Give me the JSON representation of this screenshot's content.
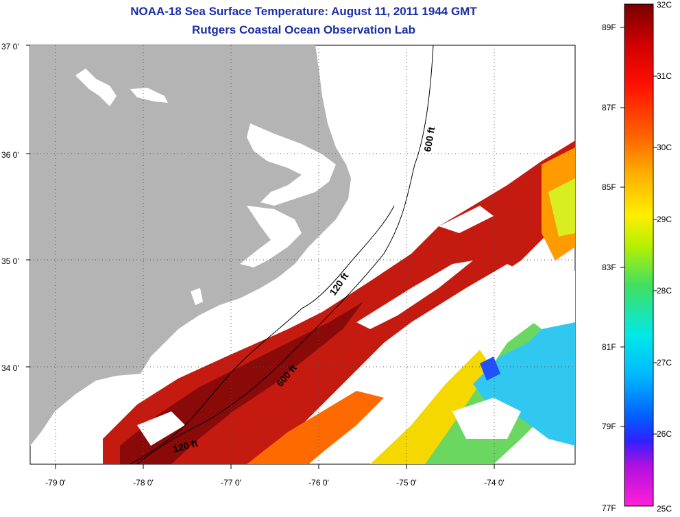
{
  "title_line1": "NOAA-18 Sea Surface Temperature:  August 11, 2011 1944 GMT",
  "title_line2": "Rutgers Coastal Ocean Observation Lab",
  "map": {
    "lat_range": [
      33.2,
      37.0
    ],
    "lon_range": [
      -79.25,
      -73.05
    ],
    "lat_labels": [
      "37 0'",
      "36 0'",
      "35 0'",
      "34 0'"
    ],
    "lon_labels": [
      "-79 0'",
      "-78 0'",
      "-77 0'",
      "-76 0'",
      "-75 0'",
      "-74 0'"
    ],
    "land_color": "#b4b4b4",
    "contour_labels": [
      {
        "text": "600 ft",
        "lon": -74.79,
        "lat": 36.17
      },
      {
        "text": "120 ft",
        "lon": -75.75,
        "lat": 34.78
      },
      {
        "text": "600 ft",
        "lon": -76.18,
        "lat": 33.88
      },
      {
        "text": "120 ft",
        "lon": -77.45,
        "lat": 33.47
      }
    ]
  },
  "colorbar": {
    "celsius_labels": [
      "32C",
      "31C",
      "30C",
      "29C",
      "28C",
      "27C",
      "26C",
      "25C"
    ],
    "fahrenheit_labels": [
      "89F",
      "87F",
      "85F",
      "83F",
      "81F",
      "79F",
      "77F"
    ],
    "colors": [
      "#ff20d8",
      "#7a10e8",
      "#0030ff",
      "#00a0ff",
      "#00e8e8",
      "#30e060",
      "#e8f000",
      "#ffb000",
      "#ff5000",
      "#e01000",
      "#780000"
    ]
  }
}
